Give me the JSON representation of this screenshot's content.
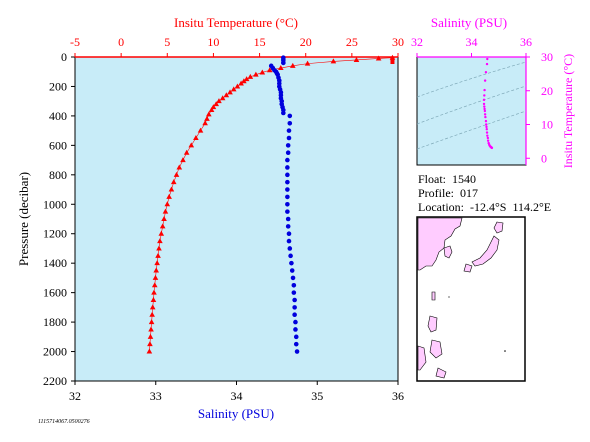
{
  "chart_data": [
    {
      "type": "scatter",
      "title": "",
      "top_xlabel": "Insitu Temperature (°C)",
      "top_xlim": [
        -5,
        30
      ],
      "top_ticks": [
        "-5",
        "0",
        "5",
        "10",
        "15",
        "20",
        "25",
        "30"
      ],
      "bottom_xlabel": "Salinity (PSU)",
      "bottom_xlim": [
        32,
        36
      ],
      "bottom_ticks": [
        "32",
        "33",
        "34",
        "35",
        "36"
      ],
      "ylabel": "Pressure (decibar)",
      "ylim": [
        0,
        2200
      ],
      "y_ticks": [
        "0",
        "200",
        "400",
        "600",
        "800",
        "1000",
        "1200",
        "1400",
        "1600",
        "1800",
        "2000",
        "2200"
      ],
      "series": [
        {
          "axis": "temperature",
          "color": "#ff0000",
          "marker": "triangle",
          "pressure": [
            5,
            10,
            20,
            30,
            45,
            60,
            75,
            90,
            105,
            120,
            135,
            150,
            165,
            180,
            200,
            220,
            240,
            260,
            280,
            300,
            320,
            340,
            360,
            390,
            420,
            450,
            500,
            550,
            600,
            650,
            700,
            750,
            800,
            850,
            900,
            950,
            1000,
            1050,
            1100,
            1150,
            1200,
            1250,
            1300,
            1350,
            1400,
            1450,
            1500,
            1550,
            1600,
            1650,
            1700,
            1750,
            1800,
            1850,
            1900,
            1950,
            2000
          ],
          "values": [
            29.4,
            27.9,
            25.5,
            23.0,
            20.2,
            18.6,
            17.3,
            16.1,
            15.3,
            14.6,
            14.0,
            13.6,
            13.3,
            13.0,
            12.6,
            12.2,
            11.8,
            11.4,
            11.0,
            10.6,
            10.3,
            10.0,
            9.8,
            9.5,
            9.3,
            9.1,
            8.6,
            8.1,
            7.6,
            7.1,
            6.7,
            6.3,
            6.0,
            5.7,
            5.45,
            5.2,
            5.0,
            4.8,
            4.65,
            4.5,
            4.35,
            4.2,
            4.1,
            4.0,
            3.9,
            3.8,
            3.72,
            3.64,
            3.56,
            3.5,
            3.42,
            3.36,
            3.3,
            3.24,
            3.18,
            3.12,
            3.06
          ]
        },
        {
          "axis": "salinity",
          "color": "#0000dd",
          "marker": "circle",
          "pressure": [
            5,
            20,
            40,
            60,
            75,
            90,
            100,
            110,
            120,
            140,
            160,
            180,
            200,
            220,
            240,
            260,
            280,
            300,
            320,
            340,
            360,
            380,
            400,
            450,
            500,
            550,
            600,
            650,
            700,
            750,
            800,
            850,
            900,
            950,
            1000,
            1050,
            1100,
            1150,
            1200,
            1250,
            1300,
            1350,
            1400,
            1450,
            1500,
            1550,
            1600,
            1650,
            1700,
            1750,
            1800,
            1850,
            1900,
            1950,
            2000
          ],
          "values": [
            34.58,
            34.58,
            34.58,
            34.43,
            34.45,
            34.47,
            34.49,
            34.5,
            34.51,
            34.52,
            34.53,
            34.53,
            34.53,
            34.54,
            34.55,
            34.55,
            34.55,
            34.56,
            34.56,
            34.57,
            34.58,
            34.58,
            34.66,
            34.66,
            34.65,
            34.65,
            34.64,
            34.64,
            34.63,
            34.63,
            34.63,
            34.63,
            34.63,
            34.63,
            34.63,
            34.63,
            34.64,
            34.64,
            34.65,
            34.65,
            34.66,
            34.67,
            34.68,
            34.69,
            34.7,
            34.71,
            34.71,
            34.72,
            34.72,
            34.72,
            34.73,
            34.73,
            34.74,
            34.74,
            34.75
          ]
        }
      ]
    },
    {
      "type": "scatter",
      "title": "",
      "xlabel": "Salinity (PSU)",
      "xlim": [
        32,
        36
      ],
      "x_ticks": [
        "32",
        "34",
        "36"
      ],
      "ylabel": "Insitu Temperature (°C)",
      "ylim": [
        -2,
        30
      ],
      "y_ticks": [
        "0",
        "10",
        "20",
        "30"
      ],
      "color": "#ff00ff",
      "points": [
        [
          34.58,
          29.4
        ],
        [
          34.57,
          27.9
        ],
        [
          34.53,
          25.5
        ],
        [
          34.5,
          23.0
        ],
        [
          34.48,
          20.2
        ],
        [
          34.47,
          18.6
        ],
        [
          34.46,
          17.3
        ],
        [
          34.46,
          16.1
        ],
        [
          34.47,
          15.3
        ],
        [
          34.48,
          14.6
        ],
        [
          34.49,
          14.0
        ],
        [
          34.5,
          13.0
        ],
        [
          34.51,
          12.2
        ],
        [
          34.53,
          11.0
        ],
        [
          34.54,
          10.0
        ],
        [
          34.55,
          9.3
        ],
        [
          34.56,
          8.6
        ],
        [
          34.57,
          7.6
        ],
        [
          34.58,
          6.7
        ],
        [
          34.6,
          6.0
        ],
        [
          34.61,
          5.2
        ],
        [
          34.63,
          4.5
        ],
        [
          34.65,
          4.0
        ],
        [
          34.67,
          3.7
        ],
        [
          34.69,
          3.5
        ],
        [
          34.7,
          3.4
        ],
        [
          34.72,
          3.3
        ],
        [
          34.73,
          3.2
        ],
        [
          34.74,
          3.1
        ],
        [
          34.75,
          3.06
        ]
      ]
    }
  ],
  "float_info": {
    "float": "Float:  1540",
    "profile": "Profile:  017",
    "location": "Location:  -12.4°S  114.2°E"
  },
  "image_code": "1115714067.0500276",
  "colors": {
    "plot_bg": "#c8ecf8",
    "temperature": "#ff0000",
    "salinity": "#0000dd",
    "ts": "#ff00ff",
    "land": "#ffccff"
  }
}
